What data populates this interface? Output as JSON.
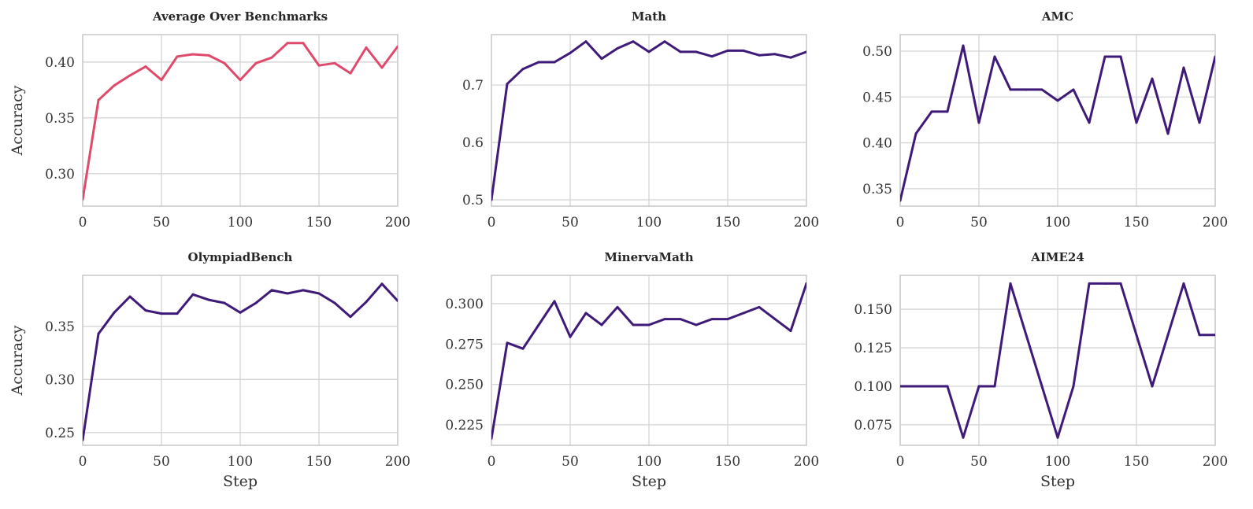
{
  "chart_data": [
    {
      "type": "line",
      "title": "Average Over Benchmarks",
      "xlabel": "",
      "ylabel": "Accuracy",
      "color": "#e04a6a",
      "x": [
        0,
        10,
        20,
        30,
        40,
        50,
        60,
        70,
        80,
        90,
        100,
        110,
        120,
        130,
        140,
        150,
        160,
        170,
        180,
        190,
        200
      ],
      "y": [
        0.277,
        0.366,
        0.379,
        0.388,
        0.396,
        0.384,
        0.405,
        0.407,
        0.406,
        0.399,
        0.384,
        0.399,
        0.404,
        0.417,
        0.417,
        0.397,
        0.399,
        0.39,
        0.413,
        0.395,
        0.414
      ],
      "xlim": [
        0,
        200
      ],
      "ylim": [
        0.271,
        0.4246
      ],
      "xticks": [
        "0",
        "50",
        "100",
        "150",
        "200"
      ],
      "xtick_values": [
        0,
        50,
        100,
        150,
        200
      ],
      "yticks": [
        "0.30",
        "0.35",
        "0.40"
      ],
      "ytick_values": [
        0.3,
        0.35,
        0.4
      ],
      "grid": true
    },
    {
      "type": "line",
      "title": "Math",
      "xlabel": "",
      "ylabel": "",
      "color": "#3f1a78",
      "x": [
        0,
        10,
        20,
        30,
        40,
        50,
        60,
        70,
        80,
        90,
        100,
        110,
        120,
        130,
        140,
        150,
        160,
        170,
        180,
        190,
        200
      ],
      "y": [
        0.5,
        0.702,
        0.728,
        0.74,
        0.74,
        0.756,
        0.776,
        0.746,
        0.764,
        0.776,
        0.758,
        0.776,
        0.758,
        0.758,
        0.75,
        0.76,
        0.76,
        0.752,
        0.754,
        0.748,
        0.758
      ],
      "xlim": [
        0,
        200
      ],
      "ylim": [
        0.489,
        0.788
      ],
      "xticks": [
        "0",
        "50",
        "100",
        "150",
        "200"
      ],
      "xtick_values": [
        0,
        50,
        100,
        150,
        200
      ],
      "yticks": [
        "0.5",
        "0.6",
        "0.7"
      ],
      "ytick_values": [
        0.5,
        0.6,
        0.7
      ],
      "grid": true
    },
    {
      "type": "line",
      "title": "AMC",
      "xlabel": "",
      "ylabel": "",
      "color": "#3f1a78",
      "x": [
        0,
        10,
        20,
        30,
        40,
        50,
        60,
        70,
        80,
        90,
        100,
        110,
        120,
        130,
        140,
        150,
        160,
        170,
        180,
        190,
        200
      ],
      "y": [
        0.337,
        0.41,
        0.434,
        0.434,
        0.506,
        0.422,
        0.494,
        0.458,
        0.458,
        0.458,
        0.446,
        0.458,
        0.422,
        0.494,
        0.494,
        0.422,
        0.47,
        0.41,
        0.482,
        0.422,
        0.494
      ],
      "xlim": [
        0,
        200
      ],
      "ylim": [
        0.331,
        0.518
      ],
      "xticks": [
        "0",
        "50",
        "100",
        "150",
        "200"
      ],
      "xtick_values": [
        0,
        50,
        100,
        150,
        200
      ],
      "yticks": [
        "0.35",
        "0.40",
        "0.45",
        "0.50"
      ],
      "ytick_values": [
        0.35,
        0.4,
        0.45,
        0.5
      ],
      "grid": true
    },
    {
      "type": "line",
      "title": "OlympiadBench",
      "xlabel": "Step",
      "ylabel": "Accuracy",
      "color": "#3f1a78",
      "x": [
        0,
        10,
        20,
        30,
        40,
        50,
        60,
        70,
        80,
        90,
        100,
        110,
        120,
        130,
        140,
        150,
        160,
        170,
        180,
        190,
        200
      ],
      "y": [
        0.243,
        0.343,
        0.363,
        0.378,
        0.365,
        0.362,
        0.362,
        0.38,
        0.375,
        0.372,
        0.363,
        0.372,
        0.384,
        0.381,
        0.384,
        0.381,
        0.372,
        0.359,
        0.373,
        0.39,
        0.374
      ],
      "xlim": [
        0,
        200
      ],
      "ylim": [
        0.238,
        0.398
      ],
      "xticks": [
        "0",
        "50",
        "100",
        "150",
        "200"
      ],
      "xtick_values": [
        0,
        50,
        100,
        150,
        200
      ],
      "yticks": [
        "0.25",
        "0.30",
        "0.35"
      ],
      "ytick_values": [
        0.25,
        0.3,
        0.35
      ],
      "grid": true
    },
    {
      "type": "line",
      "title": "MinervaMath",
      "xlabel": "Step",
      "ylabel": "",
      "color": "#3f1a78",
      "x": [
        0,
        10,
        20,
        30,
        40,
        50,
        60,
        70,
        80,
        90,
        100,
        110,
        120,
        130,
        140,
        150,
        160,
        170,
        180,
        190,
        200
      ],
      "y": [
        0.2165,
        0.2757,
        0.2721,
        0.2868,
        0.3015,
        0.2794,
        0.2941,
        0.2868,
        0.2978,
        0.2868,
        0.2868,
        0.2904,
        0.2904,
        0.2868,
        0.2904,
        0.2904,
        0.2941,
        0.2978,
        0.2904,
        0.2831,
        0.3125
      ],
      "xlim": [
        0,
        200
      ],
      "ylim": [
        0.2123,
        0.3175
      ],
      "xticks": [
        "0",
        "50",
        "100",
        "150",
        "200"
      ],
      "xtick_values": [
        0,
        50,
        100,
        150,
        200
      ],
      "yticks": [
        "0.225",
        "0.250",
        "0.275",
        "0.300"
      ],
      "ytick_values": [
        0.225,
        0.25,
        0.275,
        0.3
      ],
      "grid": true
    },
    {
      "type": "line",
      "title": "AIME24",
      "xlabel": "Step",
      "ylabel": "",
      "color": "#3f1a78",
      "x": [
        0,
        10,
        20,
        30,
        40,
        50,
        60,
        70,
        80,
        90,
        100,
        110,
        120,
        130,
        140,
        150,
        160,
        170,
        180,
        190,
        200
      ],
      "y": [
        0.1,
        0.1,
        0.1,
        0.1,
        0.0667,
        0.1,
        0.1,
        0.1667,
        0.1333,
        0.1,
        0.0667,
        0.1,
        0.1667,
        0.1667,
        0.1667,
        0.1333,
        0.1,
        0.1333,
        0.1667,
        0.1333,
        0.1333
      ],
      "xlim": [
        0,
        200
      ],
      "ylim": [
        0.0617,
        0.172
      ],
      "xticks": [
        "0",
        "50",
        "100",
        "150",
        "200"
      ],
      "xtick_values": [
        0,
        50,
        100,
        150,
        200
      ],
      "yticks": [
        "0.075",
        "0.100",
        "0.125",
        "0.150"
      ],
      "ytick_values": [
        0.075,
        0.1,
        0.125,
        0.15
      ],
      "grid": true
    }
  ]
}
